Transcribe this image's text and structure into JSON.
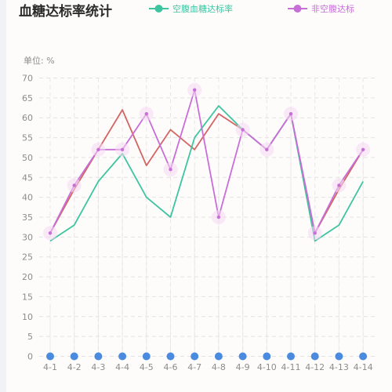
{
  "chart_data": {
    "type": "line",
    "title": "血糖达标率统计",
    "unit_label": "单位: %",
    "categories": [
      "4-1",
      "4-2",
      "4-3",
      "4-4",
      "4-5",
      "4-6",
      "4-7",
      "4-8",
      "4-9",
      "4-10",
      "4-11",
      "4-12",
      "4-13",
      "4-14"
    ],
    "ylim": [
      0,
      70
    ],
    "yticks": [
      0,
      5,
      10,
      15,
      20,
      25,
      30,
      35,
      40,
      45,
      50,
      55,
      60,
      65,
      70
    ],
    "grid": true,
    "legend_position": "top",
    "series": [
      {
        "name": "空腹血糖达标率",
        "color": "#3fc4a0",
        "values": [
          29,
          33,
          44,
          51,
          40,
          35,
          55,
          63,
          57,
          52,
          61,
          29,
          33,
          44
        ]
      },
      {
        "name": "",
        "color": "#d26664",
        "values": [
          31,
          42,
          52,
          62,
          48,
          57,
          52,
          61,
          57,
          52,
          61,
          31,
          42,
          52
        ]
      },
      {
        "name": "非空腹达标",
        "color": "#c86ed8",
        "values": [
          31,
          43,
          52,
          52,
          61,
          47,
          67,
          35,
          57,
          52,
          61,
          31,
          43,
          52
        ]
      }
    ],
    "dot_color": "#4a8be0"
  }
}
